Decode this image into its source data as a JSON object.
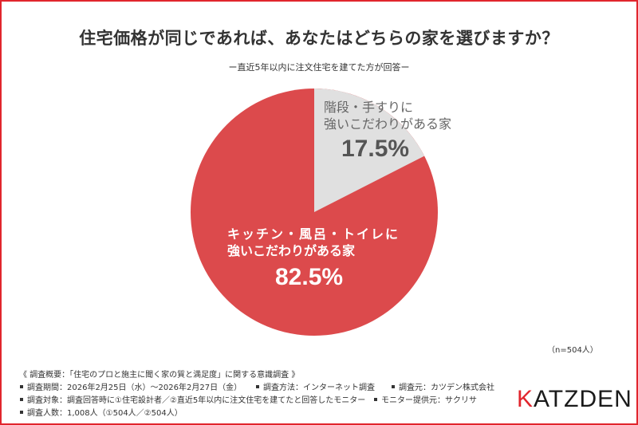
{
  "header": {
    "title": "住宅価格が同じであれば、あなたはどちらの家を選びますか？",
    "subtitle": "ー直近5年以内に注文住宅を建てた方が回答ー"
  },
  "colors": {
    "frame": "#e1252d",
    "slice_red": "#dc4a4c",
    "slice_gray": "#e0e0e0",
    "logo_accent": "#e1252d"
  },
  "chart_data": {
    "type": "pie",
    "title": "住宅価格が同じであれば、あなたはどちらの家を選びますか？",
    "subtitle": "ー直近5年以内に注文住宅を建てた方が回答ー",
    "categories": [
      "階段・手すりに強いこだわりがある家",
      "キッチン・風呂・トイレに強いこだわりがある家"
    ],
    "values": [
      17.5,
      82.5
    ],
    "unit": "%",
    "colors": [
      "#e0e0e0",
      "#dc4a4c"
    ],
    "start_angle": "12 o'clock, clockwise",
    "sample_note": "（n=504人）"
  },
  "slices": [
    {
      "line1": "階段・手すりに",
      "line2": "強いこだわりがある家",
      "pct": "17.5%"
    },
    {
      "line1": "キッチン・風呂・トイレに",
      "line2": "強いこだわりがある家",
      "pct": "82.5%"
    }
  ],
  "note": "（n=504人）",
  "footer": {
    "overview": "《 調査概要：「住宅のプロと施主に聞く家の質と満足度」に関する意識調査 》",
    "period": "調査期間：2026年2月25日（水）～2026年2月27日（金）",
    "method": "調査方法：インターネット調査",
    "source": "調査元：カツデン株式会社",
    "target": "調査対象：調査回答時に①住宅設計者／②直近5年以内に注文住宅を建てたと回答したモニター",
    "provider": "モニター提供元：サクリサ",
    "count": "調査人数：1,008人（①504人／②504人）"
  },
  "logo": {
    "first": "K",
    "rest": "ATZDEN"
  }
}
